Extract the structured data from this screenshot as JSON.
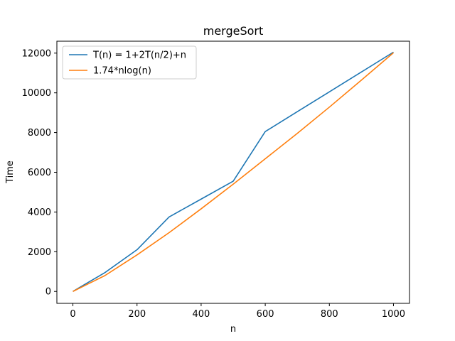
{
  "chart_data": {
    "type": "line",
    "title": "mergeSort",
    "xlabel": "n",
    "ylabel": "Time",
    "xlim": [
      -50,
      1050
    ],
    "ylim": [
      -600,
      12600
    ],
    "xticks": [
      0,
      200,
      400,
      600,
      800,
      1000
    ],
    "yticks": [
      0,
      2000,
      4000,
      6000,
      8000,
      10000,
      12000
    ],
    "grid": false,
    "legend_position": "top-left",
    "series": [
      {
        "name": "T(n) = 1+2T(n/2)+n",
        "color": "#1f77b4",
        "x": [
          0,
          100,
          200,
          300,
          400,
          500,
          600,
          700,
          800,
          900,
          1000
        ],
        "y": [
          0,
          950,
          2100,
          3750,
          4650,
          5550,
          8050,
          9050,
          10050,
          11050,
          12050
        ]
      },
      {
        "name": "1.74*nlog(n)",
        "color": "#ff7f0e",
        "x": [
          0,
          100,
          200,
          300,
          400,
          500,
          600,
          700,
          800,
          900,
          1000
        ],
        "y": [
          0,
          800,
          1840,
          2960,
          4160,
          5400,
          6680,
          7960,
          9280,
          10640,
          12020
        ]
      }
    ]
  }
}
